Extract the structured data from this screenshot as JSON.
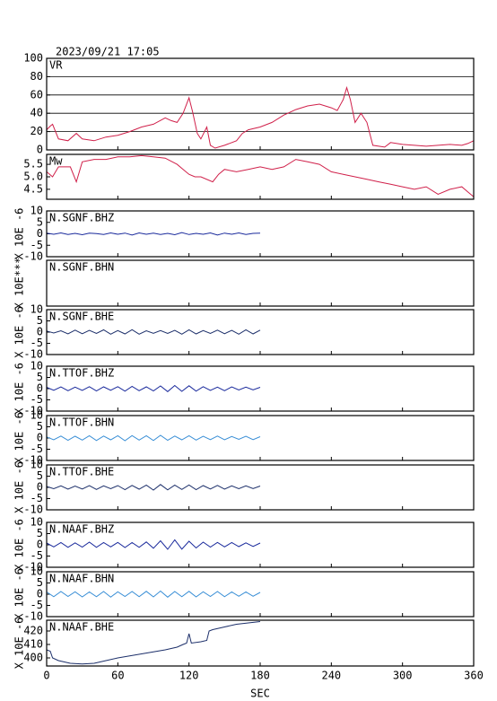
{
  "title": "2023/09/21 17:05",
  "x_axis": {
    "xlim": [
      0,
      360
    ],
    "xticks": [
      0,
      60,
      120,
      180,
      240,
      300,
      360
    ],
    "xlabel": "SEC"
  },
  "chart_data": [
    {
      "type": "line",
      "label": "VR",
      "ylim": [
        0,
        100
      ],
      "yticks": [
        0,
        20,
        40,
        60,
        80,
        100
      ],
      "grid": true,
      "color": "#d0204a",
      "x": [
        0,
        3,
        5,
        10,
        18,
        25,
        30,
        40,
        50,
        60,
        70,
        80,
        90,
        100,
        105,
        110,
        115,
        120,
        123,
        127,
        130,
        135,
        138,
        142,
        150,
        160,
        165,
        170,
        180,
        190,
        200,
        210,
        220,
        230,
        240,
        245,
        250,
        253,
        256,
        260,
        265,
        270,
        275,
        285,
        290,
        300,
        310,
        320,
        330,
        340,
        350,
        355,
        360
      ],
      "values": [
        22,
        26,
        28,
        12,
        10,
        18,
        12,
        10,
        14,
        16,
        20,
        25,
        28,
        35,
        32,
        30,
        40,
        57,
        42,
        18,
        12,
        25,
        5,
        2,
        5,
        10,
        18,
        22,
        25,
        30,
        38,
        44,
        48,
        50,
        46,
        43,
        55,
        68,
        55,
        30,
        40,
        30,
        5,
        3,
        8,
        6,
        5,
        4,
        5,
        6,
        5,
        7,
        10
      ]
    },
    {
      "type": "line",
      "label": "Mw",
      "ylim": [
        4.1,
        5.9
      ],
      "yticks": [
        4.5,
        {
          "value": 5,
          "label": "5.0"
        },
        5.5
      ],
      "grid": false,
      "color": "#d0204a",
      "x": [
        0,
        5,
        10,
        20,
        25,
        30,
        40,
        50,
        60,
        70,
        80,
        90,
        100,
        110,
        115,
        120,
        125,
        130,
        140,
        145,
        150,
        160,
        170,
        180,
        190,
        200,
        210,
        220,
        230,
        240,
        250,
        260,
        270,
        280,
        290,
        300,
        310,
        320,
        330,
        340,
        350,
        355,
        360
      ],
      "values": [
        5.2,
        5.0,
        5.4,
        5.4,
        4.8,
        5.6,
        5.7,
        5.7,
        5.8,
        5.8,
        5.85,
        5.8,
        5.75,
        5.5,
        5.3,
        5.1,
        5.0,
        5.0,
        4.8,
        5.1,
        5.3,
        5.2,
        5.3,
        5.4,
        5.3,
        5.4,
        5.7,
        5.6,
        5.5,
        5.2,
        5.1,
        5.0,
        4.9,
        4.8,
        4.7,
        4.6,
        4.5,
        4.6,
        4.3,
        4.5,
        4.6,
        4.4,
        4.2
      ]
    },
    {
      "type": "line",
      "label": "N.SGNF.BHZ",
      "ylabel": "X 10E -6",
      "ylim": [
        -10,
        10
      ],
      "yticks": [
        -10,
        -5,
        0,
        5,
        10
      ],
      "grid": false,
      "color": "#1a2a9c",
      "x": [
        0,
        6,
        12,
        18,
        24,
        30,
        36,
        42,
        48,
        54,
        60,
        66,
        72,
        78,
        84,
        90,
        96,
        102,
        108,
        114,
        120,
        126,
        132,
        138,
        144,
        150,
        156,
        162,
        168,
        174,
        180
      ],
      "values": [
        0.3,
        -0.2,
        0.4,
        -0.3,
        0.2,
        -0.4,
        0.3,
        0.1,
        -0.3,
        0.4,
        -0.2,
        0.3,
        -0.5,
        0.4,
        -0.2,
        0.3,
        -0.3,
        0.2,
        -0.4,
        0.5,
        -0.3,
        0.2,
        -0.2,
        0.4,
        -0.5,
        0.3,
        -0.2,
        0.4,
        -0.3,
        0.2,
        0.3
      ]
    },
    {
      "type": "line",
      "label": "N.SGNF.BHN",
      "ylabel": "X 10E***",
      "ylim": [
        -10,
        10
      ],
      "yticks": [],
      "grid": false,
      "color": "#1a2a9c",
      "x": [],
      "values": []
    },
    {
      "type": "line",
      "label": "N.SGNF.BHE",
      "ylabel": "X 10E -6",
      "ylim": [
        -10,
        10
      ],
      "yticks": [
        -10,
        -5,
        0,
        5,
        10
      ],
      "grid": false,
      "color": "#1c2f6a",
      "x": [
        0,
        6,
        12,
        18,
        24,
        30,
        36,
        42,
        48,
        54,
        60,
        66,
        72,
        78,
        84,
        90,
        96,
        102,
        108,
        114,
        120,
        126,
        132,
        138,
        144,
        150,
        156,
        162,
        168,
        174,
        180
      ],
      "values": [
        0.5,
        -0.4,
        0.6,
        -0.8,
        0.9,
        -0.7,
        0.8,
        -0.6,
        1.0,
        -0.9,
        0.7,
        -0.8,
        1.1,
        -0.9,
        0.6,
        -0.5,
        0.7,
        -0.6,
        0.8,
        -0.9,
        1.0,
        -0.8,
        0.7,
        -0.6,
        0.9,
        -0.7,
        0.8,
        -0.9,
        1.0,
        -0.8,
        0.9
      ]
    },
    {
      "type": "line",
      "label": "N.TTOF.BHZ",
      "ylabel": "X 10E -6",
      "ylim": [
        -10,
        10
      ],
      "yticks": [
        -10,
        -5,
        0,
        5,
        10
      ],
      "grid": false,
      "color": "#1a2a9c",
      "x": [
        0,
        6,
        12,
        18,
        24,
        30,
        36,
        42,
        48,
        54,
        60,
        66,
        72,
        78,
        84,
        90,
        96,
        102,
        108,
        114,
        120,
        126,
        132,
        138,
        144,
        150,
        156,
        162,
        168,
        174,
        180
      ],
      "values": [
        0.6,
        -0.7,
        0.8,
        -0.9,
        0.7,
        -0.8,
        0.9,
        -1.0,
        0.8,
        -0.7,
        0.9,
        -1.1,
        1.0,
        -0.9,
        0.8,
        -1.0,
        1.2,
        -1.3,
        1.4,
        -1.2,
        1.3,
        -1.1,
        0.9,
        -0.8,
        0.7,
        -0.9,
        0.8,
        -0.6,
        0.7,
        -0.5,
        0.6
      ]
    },
    {
      "type": "line",
      "label": "N.TTOF.BHN",
      "ylabel": "X 10E -6",
      "ylim": [
        -10,
        10
      ],
      "yticks": [
        -10,
        -5,
        0,
        5,
        10
      ],
      "grid": false,
      "color": "#3a8fd6",
      "x": [
        0,
        6,
        12,
        18,
        24,
        30,
        36,
        42,
        48,
        54,
        60,
        66,
        72,
        78,
        84,
        90,
        96,
        102,
        108,
        114,
        120,
        126,
        132,
        138,
        144,
        150,
        156,
        162,
        168,
        174,
        180
      ],
      "values": [
        0.5,
        -0.8,
        0.9,
        -1.0,
        0.8,
        -0.9,
        1.0,
        -1.1,
        0.9,
        -0.8,
        1.0,
        -1.2,
        1.1,
        -0.9,
        1.0,
        -1.1,
        1.2,
        -1.0,
        0.9,
        -0.8,
        1.0,
        -0.9,
        0.8,
        -0.7,
        0.9,
        -0.8,
        0.7,
        -0.6,
        0.8,
        -0.7,
        0.6
      ]
    },
    {
      "type": "line",
      "label": "N.TTOF.BHE",
      "ylabel": "X 10E -6",
      "ylim": [
        -10,
        10
      ],
      "yticks": [
        -10,
        -5,
        0,
        5,
        10
      ],
      "grid": false,
      "color": "#1c2f6a",
      "x": [
        0,
        6,
        12,
        18,
        24,
        30,
        36,
        42,
        48,
        54,
        60,
        66,
        72,
        78,
        84,
        90,
        96,
        102,
        108,
        114,
        120,
        126,
        132,
        138,
        144,
        150,
        156,
        162,
        168,
        174,
        180
      ],
      "values": [
        0.4,
        -0.6,
        0.7,
        -0.8,
        0.6,
        -0.7,
        0.8,
        -0.9,
        0.7,
        -0.6,
        0.8,
        -1.0,
        0.9,
        -0.8,
        1.0,
        -1.2,
        1.3,
        -1.1,
        1.0,
        -0.9,
        1.1,
        -1.0,
        0.8,
        -0.7,
        0.9,
        -0.8,
        0.7,
        -0.6,
        0.7,
        -0.5,
        0.6
      ]
    },
    {
      "type": "line",
      "label": "N.NAAF.BHZ",
      "ylabel": "X 10E -6",
      "ylim": [
        -10,
        10
      ],
      "yticks": [
        -10,
        -5,
        0,
        5,
        10
      ],
      "grid": false,
      "color": "#1a2a9c",
      "x": [
        0,
        6,
        12,
        18,
        24,
        30,
        36,
        42,
        48,
        54,
        60,
        66,
        72,
        78,
        84,
        90,
        96,
        102,
        108,
        114,
        120,
        126,
        132,
        138,
        144,
        150,
        156,
        162,
        168,
        174,
        180
      ],
      "values": [
        0.8,
        -0.9,
        1.0,
        -1.1,
        0.9,
        -1.0,
        1.2,
        -1.1,
        1.0,
        -0.9,
        1.1,
        -1.2,
        1.0,
        -1.1,
        1.3,
        -1.5,
        1.8,
        -2.0,
        2.2,
        -1.9,
        1.6,
        -1.4,
        1.2,
        -1.0,
        1.1,
        -0.9,
        1.0,
        -0.8,
        0.9,
        -0.7,
        0.8
      ]
    },
    {
      "type": "line",
      "label": "N.NAAF.BHN",
      "ylabel": "X 10E -6",
      "ylim": [
        -10,
        10
      ],
      "yticks": [
        -10,
        -5,
        0,
        5,
        10
      ],
      "grid": false,
      "color": "#3a8fd6",
      "x": [
        0,
        6,
        12,
        18,
        24,
        30,
        36,
        42,
        48,
        54,
        60,
        66,
        72,
        78,
        84,
        90,
        96,
        102,
        108,
        114,
        120,
        126,
        132,
        138,
        144,
        150,
        156,
        162,
        168,
        174,
        180
      ],
      "values": [
        1.0,
        -1.1,
        1.2,
        -1.0,
        1.1,
        -1.2,
        1.0,
        -1.1,
        1.2,
        -1.3,
        1.1,
        -1.0,
        1.2,
        -1.1,
        1.3,
        -1.2,
        1.4,
        -1.3,
        1.2,
        -1.1,
        1.3,
        -1.2,
        1.1,
        -1.0,
        1.2,
        -1.1,
        1.0,
        -0.9,
        1.0,
        -0.9,
        0.8
      ]
    },
    {
      "type": "line",
      "label": "N.NAAF.BHE",
      "ylabel": "X 10E -6",
      "ylim": [
        394,
        428
      ],
      "yticks": [
        400,
        410,
        420
      ],
      "grid": false,
      "color": "#1c2f6a",
      "x": [
        0,
        3,
        5,
        10,
        20,
        30,
        40,
        50,
        60,
        80,
        100,
        110,
        115,
        118,
        120,
        122,
        130,
        135,
        137,
        140,
        150,
        160,
        170,
        180
      ],
      "values": [
        406,
        405,
        400,
        398,
        396,
        395.5,
        396,
        398,
        400,
        403,
        406,
        408,
        410,
        411,
        418,
        411,
        412,
        413,
        420,
        421,
        423,
        425,
        426,
        427
      ]
    }
  ]
}
